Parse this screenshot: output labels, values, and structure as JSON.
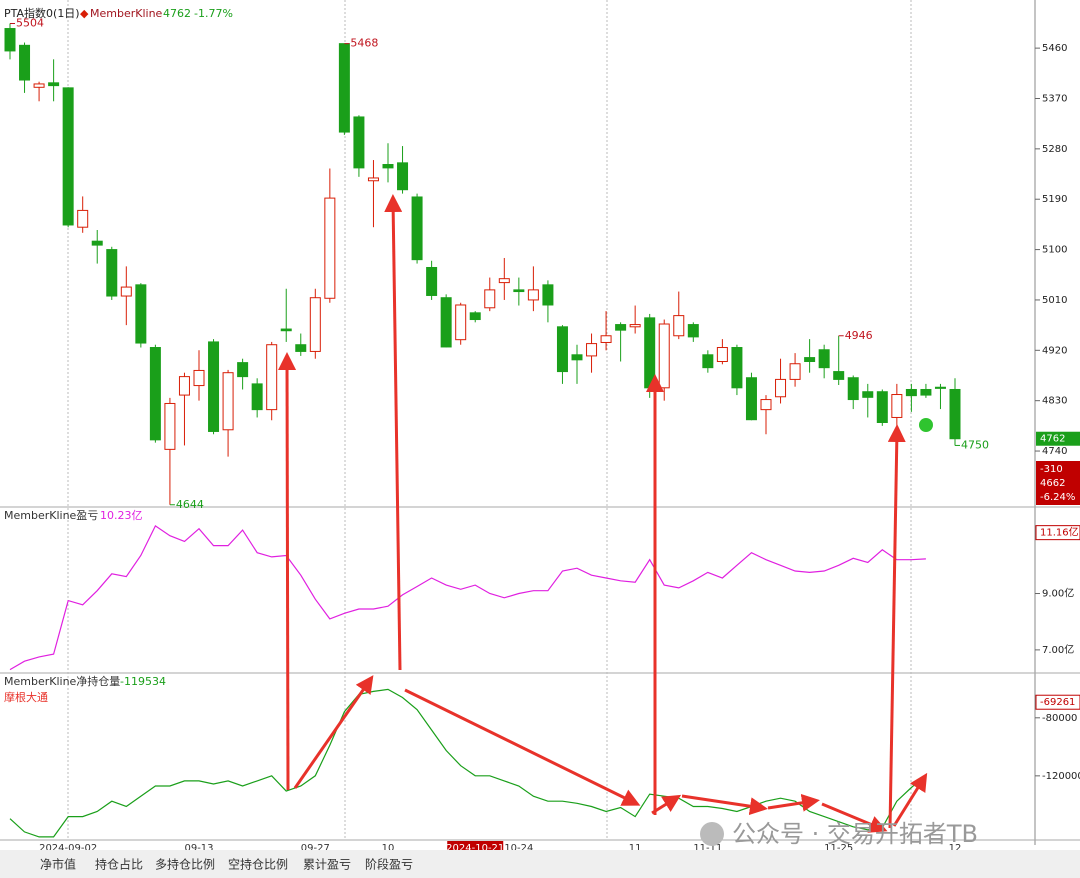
{
  "chart_data": [
    {
      "type": "candlestick",
      "title": "PTA指数0(1日)",
      "legend": "MemberKline",
      "change": "-1.77%",
      "up_color": "#d81e06",
      "down_color": "#1a9f1a",
      "categories": [
        null,
        null,
        null,
        null,
        "2024-09-02",
        null,
        null,
        null,
        null,
        null,
        null,
        null,
        null,
        "09-13",
        null,
        null,
        null,
        null,
        null,
        null,
        null,
        "09-27",
        null,
        null,
        null,
        null,
        "10",
        null,
        null,
        null,
        null,
        null,
        "2024-10-21",
        null,
        null,
        "10-24",
        null,
        null,
        null,
        null,
        null,
        null,
        null,
        "11",
        null,
        null,
        null,
        null,
        "11-11",
        null,
        null,
        null,
        null,
        null,
        null,
        null,
        null,
        "11-25",
        null,
        null,
        null,
        null,
        null,
        null,
        null,
        "12"
      ],
      "highlight_category": 32,
      "open": [
        5495,
        5465,
        5390,
        5398,
        5389,
        5140,
        5115,
        5100,
        5017,
        5037,
        4925,
        4743,
        4840,
        4857,
        4935,
        4778,
        4898,
        4860,
        4814,
        4958,
        4930,
        4918,
        5013,
        5468,
        5337,
        5223,
        5252,
        5255,
        5194,
        5068,
        5014,
        4939,
        4987,
        4996,
        5041,
        5028,
        5010,
        5037,
        4962,
        4912,
        4910,
        4934,
        4966,
        4962,
        4978,
        4853,
        4946,
        4966,
        4912,
        4900,
        4925,
        4871,
        4814,
        4837,
        4868,
        4907,
        4921,
        4882,
        4871,
        4846,
        4846,
        4800,
        4850,
        4850,
        4854,
        4850
      ],
      "high": [
        5504,
        5470,
        5400,
        5440,
        5390,
        5195,
        5135,
        5105,
        5070,
        5040,
        4930,
        4835,
        4880,
        4920,
        4940,
        4885,
        4905,
        4870,
        4935,
        5030,
        4950,
        5030,
        5245,
        5468,
        5340,
        5260,
        5290,
        5285,
        5200,
        5080,
        5020,
        5005,
        4990,
        5050,
        5085,
        5050,
        5070,
        5045,
        4965,
        4930,
        4950,
        4990,
        4970,
        5000,
        4985,
        4975,
        5025,
        4970,
        4920,
        4940,
        4930,
        4880,
        4840,
        4905,
        4915,
        4940,
        4930,
        4946,
        4875,
        4860,
        4850,
        4860,
        4860,
        4860,
        4860,
        4870
      ],
      "low": [
        5440,
        5380,
        5365,
        5365,
        5140,
        5130,
        5075,
        5010,
        4965,
        4925,
        4755,
        4644,
        4750,
        4830,
        4770,
        4730,
        4850,
        4800,
        4795,
        4935,
        4910,
        4905,
        5005,
        5305,
        5230,
        5140,
        5220,
        5200,
        5075,
        5010,
        4925,
        4930,
        4970,
        4990,
        5010,
        5000,
        4990,
        4970,
        4860,
        4860,
        4880,
        4920,
        4900,
        4950,
        4835,
        4830,
        4940,
        4935,
        4880,
        4895,
        4840,
        4795,
        4770,
        4825,
        4855,
        4880,
        4870,
        4858,
        4815,
        4800,
        4785,
        4785,
        4810,
        4835,
        4815,
        4750
      ],
      "close": [
        5455,
        5403,
        5396,
        5393,
        5144,
        5170,
        5108,
        5017,
        5033,
        4933,
        4760,
        4825,
        4873,
        4884,
        4775,
        4880,
        4873,
        4814,
        4930,
        4955,
        4918,
        5014,
        5192,
        5310,
        5246,
        5228,
        5246,
        5207,
        5082,
        5018,
        4926,
        5001,
        4975,
        5028,
        5048,
        5025,
        5028,
        5001,
        4882,
        4903,
        4932,
        4946,
        4956,
        4966,
        4853,
        4967,
        4982,
        4944,
        4889,
        4925,
        4853,
        4796,
        4832,
        4868,
        4896,
        4900,
        4889,
        4868,
        4832,
        4836,
        4791,
        4841,
        4839,
        4840,
        4852,
        4762
      ],
      "ylim": [
        4640,
        5546
      ],
      "yticks": [
        5460,
        5370,
        5280,
        5190,
        5100,
        5010,
        4920,
        4830,
        4740
      ],
      "info_box": [
        "-310",
        "4662",
        "-6.24%"
      ]
    },
    {
      "type": "line",
      "legend": "MemberKline盈亏",
      "value_text": "10.23亿",
      "color": "#e020e0",
      "values": [
        6.3,
        6.6,
        6.75,
        6.85,
        8.75,
        8.6,
        9.1,
        9.7,
        9.6,
        10.35,
        11.4,
        11.05,
        10.85,
        11.3,
        10.7,
        10.7,
        11.25,
        10.45,
        10.3,
        10.35,
        9.65,
        8.8,
        8.1,
        8.3,
        8.45,
        8.45,
        8.55,
        8.95,
        9.25,
        9.55,
        9.3,
        9.15,
        9.3,
        9.0,
        8.85,
        9.0,
        9.1,
        9.1,
        9.8,
        9.9,
        9.65,
        9.55,
        9.45,
        9.4,
        10.2,
        9.3,
        9.2,
        9.45,
        9.75,
        9.55,
        10.0,
        10.45,
        10.2,
        10.0,
        9.8,
        9.75,
        9.8,
        10.0,
        10.25,
        10.1,
        10.55,
        10.2,
        10.2,
        10.23,
        null,
        null
      ],
      "ylim": [
        6.18,
        12.07
      ],
      "yticks": [
        {
          "value": 9,
          "label": "9.00亿"
        },
        {
          "value": 7,
          "label": "7.00亿"
        }
      ],
      "current": {
        "value": 11.16,
        "label": "11.16亿"
      }
    },
    {
      "type": "line",
      "legend": "MemberKline净持仓量",
      "value_text": "-119534",
      "subtitle": "摩根大通",
      "color": "#1a9f1a",
      "values": [
        -149500,
        -158600,
        -162100,
        -162100,
        -148100,
        -148100,
        -144600,
        -137500,
        -141100,
        -134000,
        -127000,
        -127000,
        -123500,
        -123500,
        -125600,
        -123500,
        -127000,
        -123500,
        -120000,
        -130500,
        -127000,
        -120000,
        -98900,
        -75800,
        -63900,
        -61800,
        -60400,
        -66000,
        -74400,
        -88400,
        -102500,
        -113000,
        -120000,
        -120000,
        -123500,
        -127000,
        -134000,
        -137500,
        -137500,
        -138900,
        -141100,
        -144600,
        -141800,
        -148100,
        -132600,
        -134000,
        -135400,
        -141100,
        -141100,
        -142500,
        -144600,
        -141100,
        -137500,
        -135400,
        -137500,
        -144600,
        -148100,
        -151600,
        -155100,
        -157200,
        -155800,
        -137500,
        -128000,
        -119534,
        null,
        null
      ],
      "ylim": [
        -164211,
        -49123
      ],
      "yticks": [
        -80000,
        -120000
      ],
      "current": -69261
    },
    {
      "tabs": [
        "净市值",
        "持仓占比",
        "多持仓比例",
        "空持仓比例",
        "累计盈亏",
        "阶段盈亏"
      ],
      "watermark": "公众号 · 交易开拓者TB"
    }
  ]
}
